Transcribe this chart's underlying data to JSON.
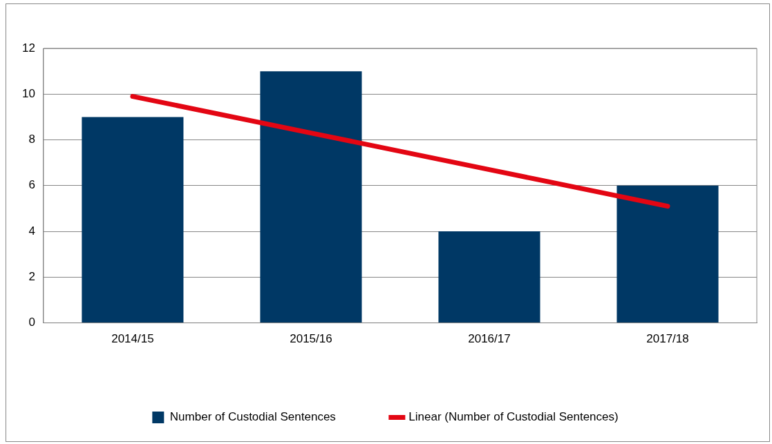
{
  "chart_data": {
    "type": "bar",
    "categories": [
      "2014/15",
      "2015/16",
      "2016/17",
      "2017/18"
    ],
    "series": [
      {
        "name": "Number of Custodial Sentences",
        "color": "#003865",
        "values": [
          9,
          11,
          4,
          6
        ]
      },
      {
        "name": "Linear (Number of Custodial Sentences)",
        "type": "line",
        "color": "#e30613",
        "values": [
          9.9,
          8.3,
          6.7,
          5.1
        ]
      }
    ],
    "ylim": [
      0,
      12
    ],
    "yticks": [
      0,
      2,
      4,
      6,
      8,
      10,
      12
    ],
    "grid": "y",
    "legend": "bottom"
  }
}
